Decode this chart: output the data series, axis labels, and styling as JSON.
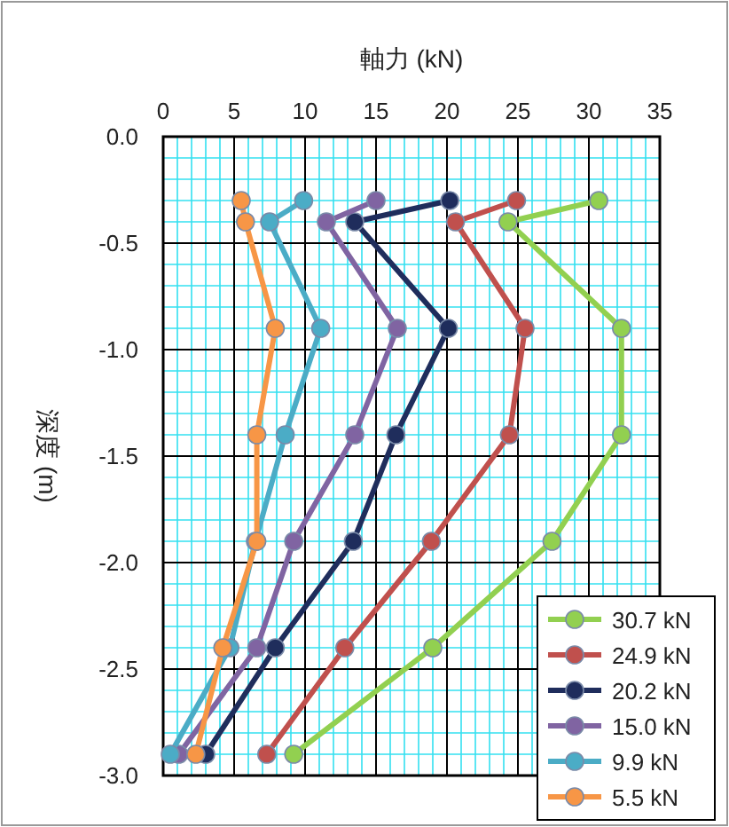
{
  "chart_data": {
    "type": "line",
    "xlabel": "軸力 (kN)",
    "ylabel": "深度 (m)",
    "xlim": [
      0,
      35
    ],
    "xticks": [
      0,
      {
        "value": 1,
        "label": null
      },
      {
        "value": 2,
        "label": null
      },
      {
        "value": 3,
        "label": null
      },
      {
        "value": 4,
        "label": null
      },
      5,
      {
        "value": 6,
        "label": null
      },
      {
        "value": 7,
        "label": null
      },
      {
        "value": 8,
        "label": null
      },
      {
        "value": 9,
        "label": null
      },
      10,
      {
        "value": 11,
        "label": null
      },
      {
        "value": 12,
        "label": null
      },
      {
        "value": 13,
        "label": null
      },
      {
        "value": 14,
        "label": null
      },
      15,
      {
        "value": 16,
        "label": null
      },
      {
        "value": 17,
        "label": null
      },
      {
        "value": 18,
        "label": null
      },
      {
        "value": 19,
        "label": null
      },
      20,
      {
        "value": 21,
        "label": null
      },
      {
        "value": 22,
        "label": null
      },
      {
        "value": 23,
        "label": null
      },
      {
        "value": 24,
        "label": null
      },
      25,
      {
        "value": 26,
        "label": null
      },
      {
        "value": 27,
        "label": null
      },
      {
        "value": 28,
        "label": null
      },
      {
        "value": 29,
        "label": null
      },
      30,
      {
        "value": 31,
        "label": null
      },
      {
        "value": 32,
        "label": null
      },
      {
        "value": 33,
        "label": null
      },
      {
        "value": 34,
        "label": null
      },
      35
    ],
    "ylim": [
      -3.0,
      0.0
    ],
    "yticks": [
      {
        "value": 0,
        "label": "0.0"
      },
      {
        "value": -0.1,
        "label": null
      },
      {
        "value": -0.2,
        "label": null
      },
      {
        "value": -0.3,
        "label": null
      },
      {
        "value": -0.4,
        "label": null
      },
      {
        "value": -0.5,
        "label": "-0.5"
      },
      {
        "value": -0.6,
        "label": null
      },
      {
        "value": -0.7,
        "label": null
      },
      {
        "value": -0.8,
        "label": null
      },
      {
        "value": -0.9,
        "label": null
      },
      {
        "value": -1.0,
        "label": "-1.0"
      },
      {
        "value": -1.1,
        "label": null
      },
      {
        "value": -1.2,
        "label": null
      },
      {
        "value": -1.3,
        "label": null
      },
      {
        "value": -1.4,
        "label": null
      },
      {
        "value": -1.5,
        "label": "-1.5"
      },
      {
        "value": -1.6,
        "label": null
      },
      {
        "value": -1.7,
        "label": null
      },
      {
        "value": -1.8,
        "label": null
      },
      {
        "value": -1.9,
        "label": null
      },
      {
        "value": -2.0,
        "label": "-2.0"
      },
      {
        "value": -2.1,
        "label": null
      },
      {
        "value": -2.2,
        "label": null
      },
      {
        "value": -2.3,
        "label": null
      },
      {
        "value": -2.4,
        "label": null
      },
      {
        "value": -2.5,
        "label": "-2.5"
      },
      {
        "value": -2.6,
        "label": null
      },
      {
        "value": -2.7,
        "label": null
      },
      {
        "value": -2.8,
        "label": null
      },
      {
        "value": -2.9,
        "label": null
      },
      {
        "value": -3.0,
        "label": "-3.0"
      }
    ],
    "grid": true,
    "legend": "bottom right",
    "marker": "circle",
    "line_style": "solid",
    "series": [
      {
        "name": "30.7 kN",
        "color": "#92d050",
        "x": [
          30.7,
          24.3,
          32.3,
          32.3,
          27.4,
          19.0,
          9.2
        ],
        "values": [
          -0.3,
          -0.4,
          -0.9,
          -1.4,
          -1.9,
          -2.4,
          -2.9
        ]
      },
      {
        "name": "24.9 kN",
        "color": "#c0504d",
        "x": [
          24.9,
          20.6,
          25.5,
          24.4,
          18.9,
          12.8,
          7.3
        ],
        "values": [
          -0.3,
          -0.4,
          -0.9,
          -1.4,
          -1.9,
          -2.4,
          -2.9
        ]
      },
      {
        "name": "20.2 kN",
        "color": "#1f2d5c",
        "x": [
          20.2,
          13.5,
          20.1,
          16.4,
          13.4,
          7.9,
          3.0
        ],
        "values": [
          -0.3,
          -0.4,
          -0.9,
          -1.4,
          -1.9,
          -2.4,
          -2.9
        ]
      },
      {
        "name": "15.0 kN",
        "color": "#8064a2",
        "x": [
          15.0,
          11.5,
          16.5,
          13.5,
          9.2,
          6.6,
          1.1
        ],
        "values": [
          -0.3,
          -0.4,
          -0.9,
          -1.4,
          -1.9,
          -2.4,
          -2.9
        ]
      },
      {
        "name": "9.9 kN",
        "color": "#4bacc6",
        "x": [
          9.9,
          7.5,
          11.1,
          8.6,
          6.5,
          4.7,
          0.5
        ],
        "values": [
          -0.3,
          -0.4,
          -0.9,
          -1.4,
          -1.9,
          -2.4,
          -2.9
        ]
      },
      {
        "name": "5.5 kN",
        "color": "#f79646",
        "x": [
          5.5,
          5.8,
          7.9,
          6.6,
          6.6,
          4.2,
          2.3
        ],
        "values": [
          -0.3,
          -0.4,
          -0.9,
          -1.4,
          -1.9,
          -2.4,
          -2.9
        ]
      }
    ]
  }
}
